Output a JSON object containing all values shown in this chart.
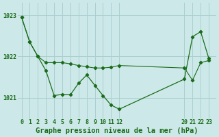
{
  "background_color": "#cce8e8",
  "plot_bg_color": "#cce8e8",
  "line_color": "#1a6b1a",
  "grid_color": "#aacfcf",
  "title": "Graphe pression niveau de la mer (hPa)",
  "ylim": [
    1020.5,
    1023.3
  ],
  "yticks": [
    1021,
    1022,
    1023
  ],
  "xticks": [
    0,
    1,
    2,
    3,
    4,
    5,
    6,
    7,
    8,
    9,
    10,
    11,
    12,
    20,
    21,
    22,
    23
  ],
  "xlim": [
    -0.5,
    23.9
  ],
  "line1_x": [
    0,
    1,
    2,
    3,
    4,
    5,
    6,
    7,
    8,
    9,
    10,
    11,
    12,
    20,
    21,
    22,
    23
  ],
  "line1_y": [
    1022.95,
    1022.35,
    1022.0,
    1021.65,
    1021.05,
    1021.08,
    1021.07,
    1021.35,
    1021.55,
    1021.3,
    1021.05,
    1020.82,
    1020.72,
    1021.45,
    1022.48,
    1022.6,
    1021.95
  ],
  "line2_x": [
    0,
    1,
    2,
    3,
    4,
    5,
    6,
    7,
    8,
    9,
    10,
    11,
    12,
    20,
    21,
    22,
    23
  ],
  "line2_y": [
    1022.95,
    1022.35,
    1022.0,
    1021.85,
    1021.85,
    1021.85,
    1021.82,
    1021.78,
    1021.75,
    1021.72,
    1021.72,
    1021.74,
    1021.78,
    1021.72,
    1021.42,
    1021.85,
    1021.9
  ],
  "title_fontsize": 7.5,
  "tick_fontsize": 6.0
}
